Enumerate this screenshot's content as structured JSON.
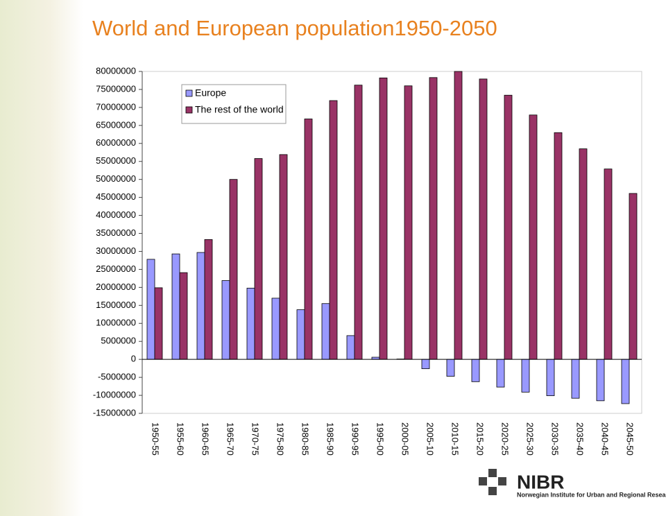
{
  "chart_data": {
    "type": "bar",
    "title": "World and European population1950-2050",
    "categories": [
      "1950-55",
      "1955-60",
      "1960-65",
      "1965-70",
      "1970-75",
      "1975-80",
      "1980-85",
      "1985-90",
      "1990-95",
      "1995-00",
      "2000-05",
      "2005-10",
      "2010-15",
      "2015-20",
      "2020-25",
      "2025-30",
      "2030-35",
      "2035-40",
      "2040-45",
      "2045-50"
    ],
    "series": [
      {
        "name": "Europe",
        "color": "#9999ff",
        "values": [
          27800000,
          29300000,
          29700000,
          21900000,
          19800000,
          17000000,
          13800000,
          15500000,
          6600000,
          600000,
          100000,
          -2600000,
          -4700000,
          -6200000,
          -7700000,
          -9100000,
          -10100000,
          -10800000,
          -11500000,
          -12300000
        ]
      },
      {
        "name": "The rest of the world",
        "color": "#993366",
        "values": [
          19900000,
          24100000,
          33300000,
          50000000,
          55800000,
          56900000,
          66800000,
          71900000,
          76200000,
          78200000,
          76000000,
          78300000,
          80000000,
          77900000,
          73400000,
          67900000,
          63000000,
          58500000,
          52900000,
          46100000
        ]
      }
    ],
    "ylim": [
      -15000000,
      80000000
    ],
    "yticks": [
      -15000000,
      -10000000,
      -5000000,
      0,
      5000000,
      10000000,
      15000000,
      20000000,
      25000000,
      30000000,
      35000000,
      40000000,
      45000000,
      50000000,
      55000000,
      60000000,
      65000000,
      70000000,
      75000000,
      80000000
    ],
    "legend": "upper left"
  },
  "logo": {
    "name": "NIBR",
    "subtitle": "Norwegian Institute for Urban and Regional Research"
  }
}
